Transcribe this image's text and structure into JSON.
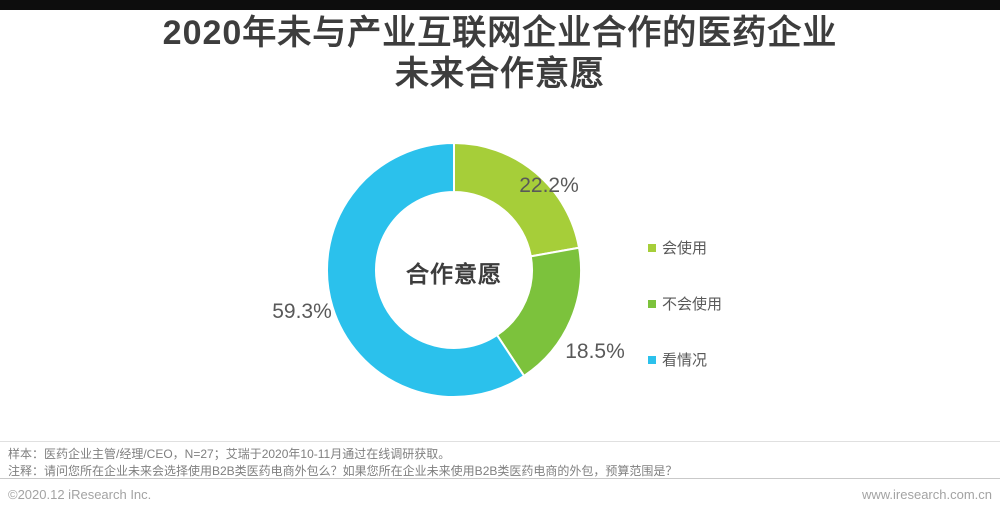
{
  "title": {
    "line1": "2020年未与产业互联网企业合作的医药企业",
    "line2": "未来合作意愿"
  },
  "chart_data": {
    "type": "pie",
    "donut": true,
    "title": "2020年未与产业互联网企业合作的医药企业未来合作意愿",
    "center_label": "合作意愿",
    "unit": "%",
    "start_angle_deg": 0,
    "direction": "clockwise",
    "legend_position": "right",
    "series": [
      {
        "name": "会使用",
        "value": 22.2,
        "label": "22.2%",
        "color": "#a6ce39"
      },
      {
        "name": "不会使用",
        "value": 18.5,
        "label": "18.5%",
        "color": "#7cc23c"
      },
      {
        "name": "看情况",
        "value": 59.3,
        "label": "59.3%",
        "color": "#2bc1ec"
      }
    ]
  },
  "notes": {
    "sample": "样本：医药企业主管/经理/CEO，N=27；艾瑞于2020年10-11月通过在线调研获取。",
    "annotation": "注释：请问您所在企业未来会选择使用B2B类医药电商外包么？如果您所在企业未来使用B2B类医药电商的外包，预算范围是？"
  },
  "footer": {
    "copyright": "©2020.12 iResearch Inc.",
    "website": "www.iresearch.com.cn"
  }
}
